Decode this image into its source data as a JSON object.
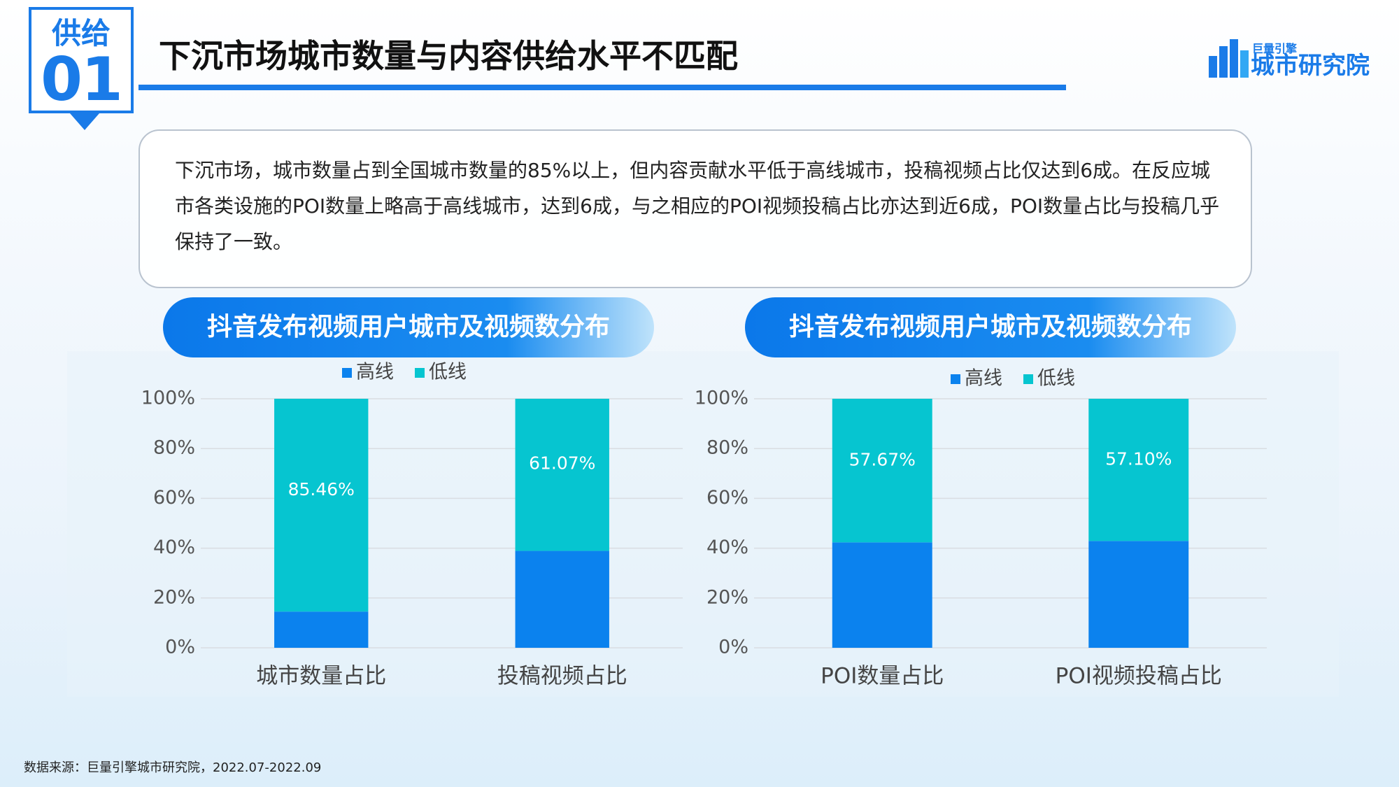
{
  "header": {
    "tag_top": "供给",
    "tag_bottom": "01",
    "title": "下沉市场城市数量与内容供给水平不匹配",
    "logo_small": "巨量引擎",
    "logo_big": "城市研究院"
  },
  "summary": "下沉市场，城市数量占到全国城市数量的85%以上，但内容贡献水平低于高线城市，投稿视频占比仅达到6成。在反应城市各类设施的POI数量上略高于高线城市，达到6成，与之相应的POI视频投稿占比亦达到近6成，POI数量占比与投稿几乎保持了一致。",
  "source": "数据来源：巨量引擎城市研究院，2022.07-2022.09",
  "chart_data": [
    {
      "type": "stacked_bar",
      "title": "抖音发布视频用户城市及视频数分布",
      "categories": [
        "城市数量占比",
        "投稿视频占比"
      ],
      "series": [
        {
          "name": "高线",
          "color": "#0b82ee",
          "values": [
            14.54,
            38.93
          ]
        },
        {
          "name": "低线",
          "color": "#06c5d0",
          "values": [
            85.46,
            61.07
          ],
          "value_labels": [
            "85.46%",
            "61.07%"
          ]
        }
      ],
      "ylim": [
        0,
        100
      ],
      "yticks": [
        {
          "value": 0,
          "label": "0%"
        },
        {
          "value": 20,
          "label": "20%"
        },
        {
          "value": 40,
          "label": "40%"
        },
        {
          "value": 60,
          "label": "60%"
        },
        {
          "value": 80,
          "label": "80%"
        },
        {
          "value": 100,
          "label": "100%"
        }
      ],
      "grid": true,
      "legend": "top"
    },
    {
      "type": "stacked_bar",
      "title": "抖音发布视频用户城市及视频数分布",
      "categories": [
        "POI数量占比",
        "POI视频投稿占比"
      ],
      "series": [
        {
          "name": "高线",
          "color": "#0b82ee",
          "values": [
            42.33,
            42.9
          ]
        },
        {
          "name": "低线",
          "color": "#06c5d0",
          "values": [
            57.67,
            57.1
          ],
          "value_labels": [
            "57.67%",
            "57.10%"
          ]
        }
      ],
      "ylim": [
        0,
        100
      ],
      "yticks": [
        {
          "value": 0,
          "label": "0%"
        },
        {
          "value": 20,
          "label": "20%"
        },
        {
          "value": 40,
          "label": "40%"
        },
        {
          "value": 60,
          "label": "60%"
        },
        {
          "value": 80,
          "label": "80%"
        },
        {
          "value": 100,
          "label": "100%"
        }
      ],
      "grid": true,
      "legend": "top"
    }
  ]
}
